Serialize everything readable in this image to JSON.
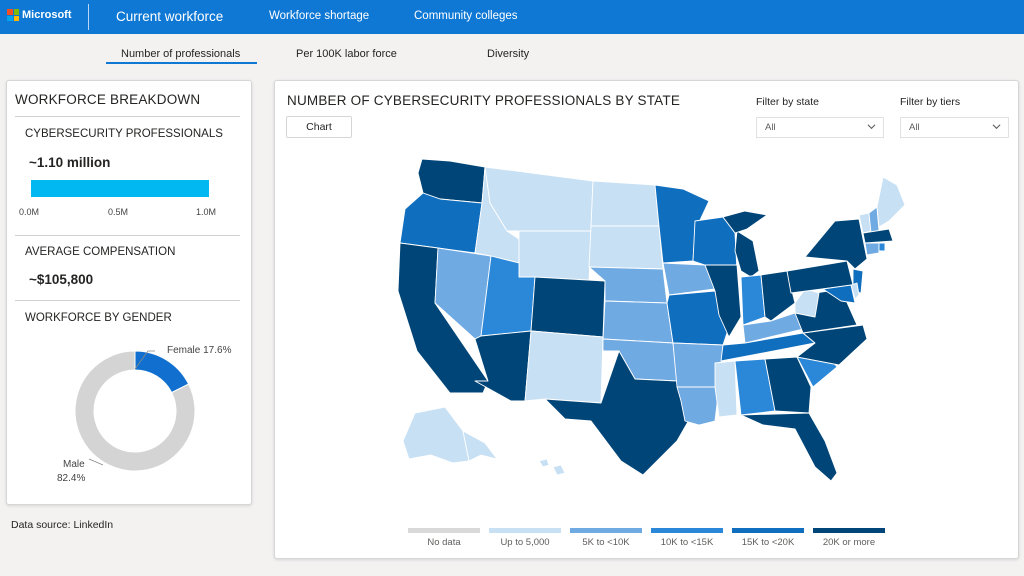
{
  "header": {
    "brand": "Microsoft",
    "nav": [
      "Current workforce",
      "Workforce shortage",
      "Community colleges"
    ]
  },
  "subtabs": [
    "Number of professionals",
    "Per 100K labor force",
    "Diversity"
  ],
  "breakdown": {
    "title": "WORKFORCE BREAKDOWN",
    "professionals_label": "CYBERSECURITY PROFESSIONALS",
    "professionals_value": "~1.10 million",
    "professionals_fraction": 0.917,
    "ticks": [
      "0.0M",
      "0.5M",
      "1.0M"
    ],
    "compensation_label": "AVERAGE COMPENSATION",
    "compensation_value": "~$105,800",
    "gender_label": "WORKFORCE BY GENDER",
    "female_label": "Female 17.6%",
    "male_label": "Male",
    "male_pct": "82.4%"
  },
  "data_source": "Data source: LinkedIn",
  "map": {
    "title": "NUMBER OF CYBERSECURITY PROFESSIONALS BY STATE",
    "chart_button": "Chart",
    "filter_state_label": "Filter by state",
    "filter_state_value": "All",
    "filter_tiers_label": "Filter by tiers",
    "filter_tiers_value": "All",
    "legend": [
      {
        "label": "No data",
        "color": "#d9d9d9"
      },
      {
        "label": "Up to 5,000",
        "color": "#c7e0f4"
      },
      {
        "label": "5K to <10K",
        "color": "#70aae3"
      },
      {
        "label": "10K to <15K",
        "color": "#2b88d8"
      },
      {
        "label": "15K to <20K",
        "color": "#106ebe"
      },
      {
        "label": "20K or more",
        "color": "#004578"
      }
    ]
  },
  "chart_data": {
    "type": "pie",
    "title": "WORKFORCE BY GENDER",
    "categories": [
      "Female",
      "Male"
    ],
    "values": [
      17.6,
      82.4
    ],
    "colors": [
      "#1170cf",
      "#d4d4d4"
    ]
  },
  "colors": {
    "topbar": "#0f78d4",
    "accent": "#01b8f0",
    "female": "#1170cf",
    "male": "#d4d4d4"
  }
}
